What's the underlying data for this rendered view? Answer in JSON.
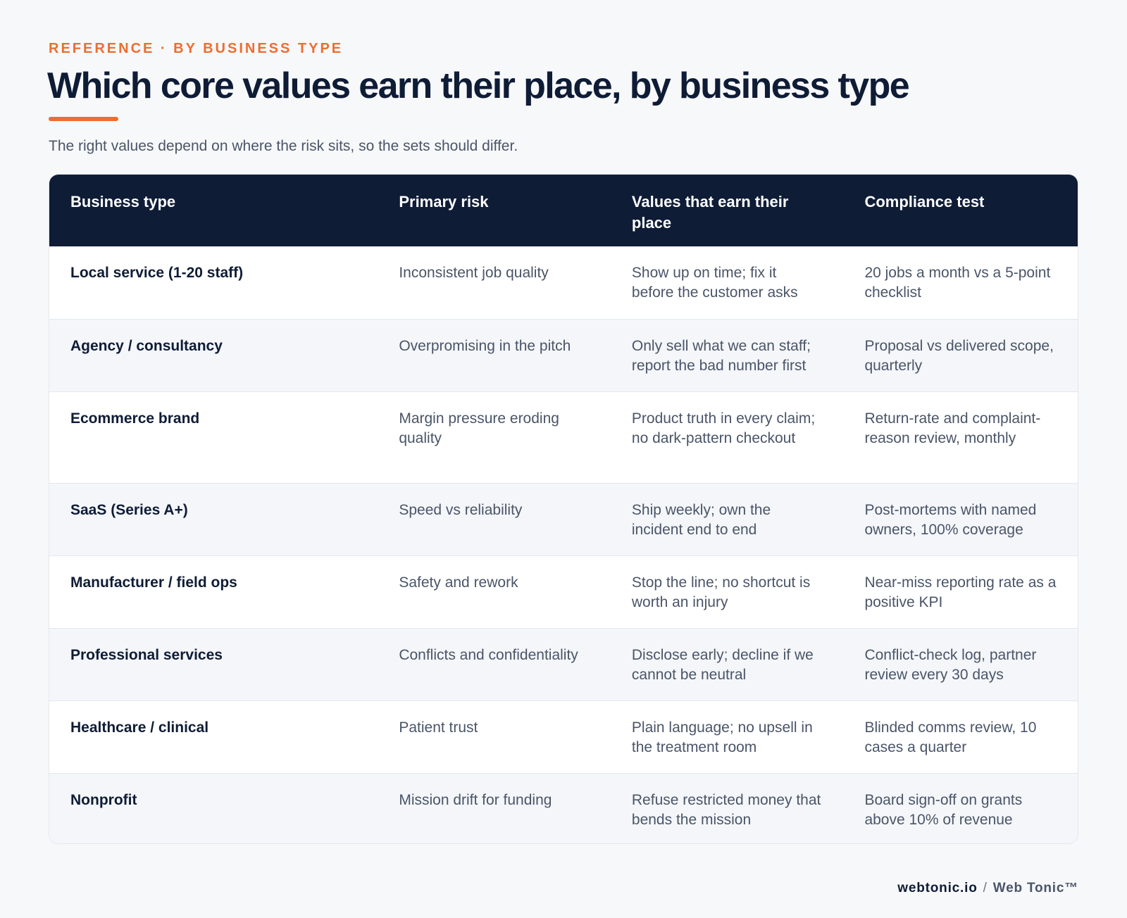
{
  "header": {
    "eyebrow": "REFERENCE · BY BUSINESS TYPE",
    "title": "Which core values earn their place, by business type",
    "subtitle": "The right values depend on where the risk sits, so the sets should differ."
  },
  "table": {
    "columns": [
      "Business type",
      "Primary risk",
      "Values that earn their place",
      "Compliance test"
    ],
    "rows": [
      {
        "business_type": "Local service (1-20 staff)",
        "primary_risk": "Inconsistent job quality",
        "values": "Show up on time; fix it before the customer asks",
        "compliance_test": "20 jobs a month vs a 5-point checklist"
      },
      {
        "business_type": "Agency / consultancy",
        "primary_risk": "Overpromising in the pitch",
        "values": "Only sell what we can staff; report the bad number first",
        "compliance_test": "Proposal vs delivered scope, quarterly"
      },
      {
        "business_type": "Ecommerce brand",
        "primary_risk": "Margin pressure eroding quality",
        "values": "Product truth in every claim; no dark-pattern checkout",
        "compliance_test": "Return-rate and complaint-reason review, monthly"
      },
      {
        "business_type": "SaaS (Series A+)",
        "primary_risk": "Speed vs reliability",
        "values": "Ship weekly; own the incident end to end",
        "compliance_test": "Post-mortems with named owners, 100% coverage"
      },
      {
        "business_type": "Manufacturer / field ops",
        "primary_risk": "Safety and rework",
        "values": "Stop the line; no shortcut is worth an injury",
        "compliance_test": "Near-miss reporting rate as a positive KPI"
      },
      {
        "business_type": "Professional services",
        "primary_risk": "Conflicts and confidentiality",
        "values": "Disclose early; decline if we cannot be neutral",
        "compliance_test": "Conflict-check log, partner review every 30 days"
      },
      {
        "business_type": "Healthcare / clinical",
        "primary_risk": "Patient trust",
        "values": "Plain language; no upsell in the treatment room",
        "compliance_test": "Blinded comms review, 10 cases a quarter"
      },
      {
        "business_type": "Nonprofit",
        "primary_risk": "Mission drift for funding",
        "values": "Refuse restricted money that bends the mission",
        "compliance_test": "Board sign-off on grants above 10% of revenue"
      }
    ]
  },
  "footer": {
    "site": "webtonic.io",
    "separator": "/",
    "brand": "Web Tonic™"
  },
  "colors": {
    "accent": "#ee6d2f",
    "navy": "#0f1c36",
    "body_text": "#4a5568",
    "row_alt": "#f4f6f9"
  }
}
